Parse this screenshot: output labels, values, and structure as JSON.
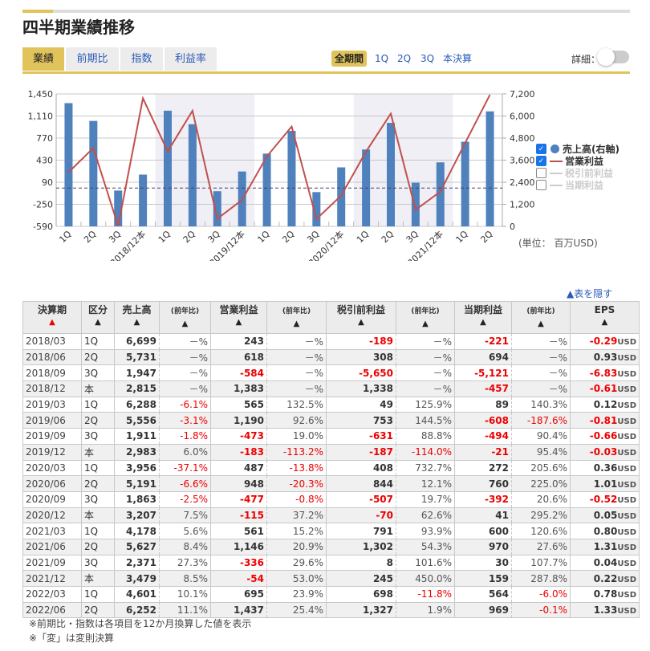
{
  "title": "四半期業績推移",
  "tabs": [
    "業績",
    "前期比",
    "指数",
    "利益率"
  ],
  "periods": [
    "全期間",
    "1Q",
    "2Q",
    "3Q",
    "本決算"
  ],
  "detail_label": "詳細：",
  "detail_toggle": false,
  "unit": "(単位： 百万USD)",
  "hide_table": "▲表を隠す",
  "legend": [
    {
      "label": "売上高(右軸)",
      "checked": true,
      "color": "#4f81bd"
    },
    {
      "label": "営業利益",
      "checked": true,
      "color": "#c0504d"
    },
    {
      "label": "税引前利益",
      "checked": false,
      "color": "#cccccc"
    },
    {
      "label": "当期利益",
      "checked": false,
      "color": "#cccccc"
    }
  ],
  "chart_data": {
    "type": "bar+line",
    "categories": [
      "1Q",
      "2Q",
      "3Q",
      "2018/12本",
      "1Q",
      "2Q",
      "3Q",
      "2019/12本",
      "1Q",
      "2Q",
      "3Q",
      "2020/12本",
      "1Q",
      "2Q",
      "3Q",
      "2021/12本",
      "1Q",
      "2Q"
    ],
    "left_axis": {
      "ticks": [
        "1,450",
        "1,110",
        "770",
        "430",
        "90",
        "-250",
        "-590"
      ],
      "range": [
        -590,
        1450
      ]
    },
    "right_axis": {
      "ticks": [
        "7,200",
        "6,000",
        "4,800",
        "3,600",
        "2,400",
        "1,200",
        "0"
      ],
      "range": [
        0,
        7200
      ]
    },
    "series": [
      {
        "name": "売上高(右軸)",
        "type": "bar",
        "axis": "right",
        "color": "#4f81bd",
        "values": [
          6699,
          5731,
          1947,
          2815,
          6288,
          5556,
          1911,
          2983,
          3956,
          5191,
          1863,
          3207,
          4178,
          5627,
          2371,
          3479,
          4601,
          6252
        ]
      },
      {
        "name": "営業利益",
        "type": "line",
        "axis": "left",
        "color": "#c0504d",
        "values": [
          243,
          618,
          -584,
          1383,
          565,
          1190,
          -473,
          -183,
          487,
          948,
          -477,
          -115,
          561,
          1146,
          -336,
          -54,
          695,
          1437
        ]
      }
    ],
    "grid": true,
    "legend_position": "right"
  },
  "table": {
    "headers": [
      "決算期",
      "区分",
      "売上高",
      "(前年比)",
      "営業利益",
      "(前年比)",
      "税引前利益",
      "(前年比)",
      "当期利益",
      "(前年比)",
      "EPS"
    ],
    "eps_unit": "USD",
    "rows": [
      [
        "2018/03",
        "1Q",
        "6,699",
        "－%",
        "243",
        "－%",
        "-189",
        "－%",
        "-221",
        "－%",
        "-0.29"
      ],
      [
        "2018/06",
        "2Q",
        "5,731",
        "－%",
        "618",
        "－%",
        "308",
        "－%",
        "694",
        "－%",
        "0.93"
      ],
      [
        "2018/09",
        "3Q",
        "1,947",
        "－%",
        "-584",
        "－%",
        "-5,650",
        "－%",
        "-5,121",
        "－%",
        "-6.83"
      ],
      [
        "2018/12",
        "本",
        "2,815",
        "－%",
        "1,383",
        "－%",
        "1,338",
        "－%",
        "-457",
        "－%",
        "-0.61"
      ],
      [
        "2019/03",
        "1Q",
        "6,288",
        "-6.1%",
        "565",
        "132.5%",
        "49",
        "125.9%",
        "89",
        "140.3%",
        "0.12"
      ],
      [
        "2019/06",
        "2Q",
        "5,556",
        "-3.1%",
        "1,190",
        "92.6%",
        "753",
        "144.5%",
        "-608",
        "-187.6%",
        "-0.81"
      ],
      [
        "2019/09",
        "3Q",
        "1,911",
        "-1.8%",
        "-473",
        "19.0%",
        "-631",
        "88.8%",
        "-494",
        "90.4%",
        "-0.66"
      ],
      [
        "2019/12",
        "本",
        "2,983",
        "6.0%",
        "-183",
        "-113.2%",
        "-187",
        "-114.0%",
        "-21",
        "95.4%",
        "-0.03"
      ],
      [
        "2020/03",
        "1Q",
        "3,956",
        "-37.1%",
        "487",
        "-13.8%",
        "408",
        "732.7%",
        "272",
        "205.6%",
        "0.36"
      ],
      [
        "2020/06",
        "2Q",
        "5,191",
        "-6.6%",
        "948",
        "-20.3%",
        "844",
        "12.1%",
        "760",
        "225.0%",
        "1.01"
      ],
      [
        "2020/09",
        "3Q",
        "1,863",
        "-2.5%",
        "-477",
        "-0.8%",
        "-507",
        "19.7%",
        "-392",
        "20.6%",
        "-0.52"
      ],
      [
        "2020/12",
        "本",
        "3,207",
        "7.5%",
        "-115",
        "37.2%",
        "-70",
        "62.6%",
        "41",
        "295.2%",
        "0.05"
      ],
      [
        "2021/03",
        "1Q",
        "4,178",
        "5.6%",
        "561",
        "15.2%",
        "791",
        "93.9%",
        "600",
        "120.6%",
        "0.80"
      ],
      [
        "2021/06",
        "2Q",
        "5,627",
        "8.4%",
        "1,146",
        "20.9%",
        "1,302",
        "54.3%",
        "970",
        "27.6%",
        "1.31"
      ],
      [
        "2021/09",
        "3Q",
        "2,371",
        "27.3%",
        "-336",
        "29.6%",
        "8",
        "101.6%",
        "30",
        "107.7%",
        "0.04"
      ],
      [
        "2021/12",
        "本",
        "3,479",
        "8.5%",
        "-54",
        "53.0%",
        "245",
        "450.0%",
        "159",
        "287.8%",
        "0.22"
      ],
      [
        "2022/03",
        "1Q",
        "4,601",
        "10.1%",
        "695",
        "23.9%",
        "698",
        "-11.8%",
        "564",
        "-6.0%",
        "0.78"
      ],
      [
        "2022/06",
        "2Q",
        "6,252",
        "11.1%",
        "1,437",
        "25.4%",
        "1,327",
        "1.9%",
        "969",
        "-0.1%",
        "1.33"
      ]
    ]
  },
  "footnotes": [
    "※前期比・指数は各項目を12か月換算した値を表示",
    "※「変」は変則決算"
  ]
}
